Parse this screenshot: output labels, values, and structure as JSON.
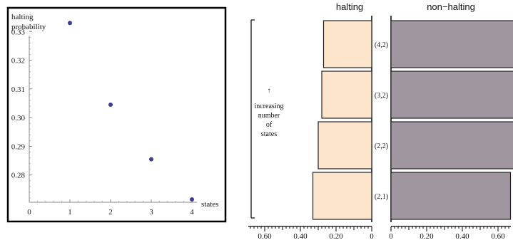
{
  "chart_data": [
    {
      "type": "scatter",
      "ylabel": "halting\nprobability",
      "xlabel": "states",
      "x_ticks": [
        "0",
        "1",
        "2",
        "3",
        "4"
      ],
      "y_ticks": [
        "0.28",
        "0.29",
        "0.30",
        "0.31",
        "0.32",
        "0.33"
      ],
      "xlim": [
        0,
        4
      ],
      "ylim": [
        0.2705,
        0.34
      ],
      "x": [
        1,
        2,
        3,
        4
      ],
      "y": [
        0.333,
        0.3045,
        0.2855,
        0.2715
      ],
      "point_color": "#3b3b9a"
    },
    {
      "type": "bar",
      "orientation": "horizontal",
      "categories": [
        "(4,2)",
        "(3,2)",
        "(2,2)",
        "(2,1)"
      ],
      "annotation": [
        "↑",
        "increasing",
        "number",
        "of",
        "states"
      ],
      "series": [
        {
          "name": "halting",
          "values": [
            0.27,
            0.28,
            0.3,
            0.33
          ],
          "color": "#fde5cb",
          "direction": "left"
        },
        {
          "name": "non−halting",
          "values": [
            0.73,
            0.72,
            0.7,
            0.67
          ],
          "color": "#a0969f",
          "direction": "right"
        }
      ],
      "left_axis_ticks": [
        "0.60",
        "0.40",
        "0.20",
        "0"
      ],
      "right_axis_ticks": [
        "0",
        "0.20",
        "0.40",
        "0.60"
      ]
    }
  ]
}
